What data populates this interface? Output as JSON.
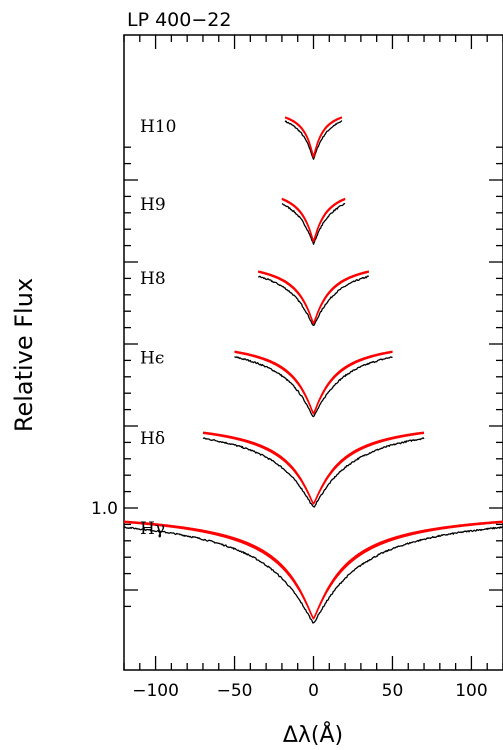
{
  "chart_data": {
    "type": "line",
    "title": "LP 400−22",
    "xlabel": "Δλ(Å)",
    "ylabel": "Relative Flux",
    "xlim": [
      -120,
      120
    ],
    "x_ticks": [
      -100,
      -50,
      0,
      50,
      100
    ],
    "y_tick_label": "1.0",
    "y_tick_value": 1.0,
    "colors": {
      "observed": "#000000",
      "model": "#ff0000"
    },
    "series": [
      {
        "name": "H10",
        "label": "H10",
        "half_width": 18,
        "offset": 4.9,
        "depth": 0.62,
        "width": 6
      },
      {
        "name": "H9",
        "label": "H9",
        "half_width": 20,
        "offset": 3.95,
        "depth": 0.7,
        "width": 8
      },
      {
        "name": "H8",
        "label": "H8",
        "half_width": 35,
        "offset": 3.05,
        "depth": 0.8,
        "width": 11
      },
      {
        "name": "Hε",
        "label": "Hϵ",
        "half_width": 50,
        "offset": 2.08,
        "depth": 0.93,
        "width": 14
      },
      {
        "name": "Hδ",
        "label": "Hδ",
        "half_width": 70,
        "offset": 1.1,
        "depth": 1.05,
        "width": 18
      },
      {
        "name": "Hγ",
        "label": "Hγ",
        "half_width": 120,
        "offset": 0.0,
        "depth": 1.35,
        "width": 22
      }
    ]
  }
}
